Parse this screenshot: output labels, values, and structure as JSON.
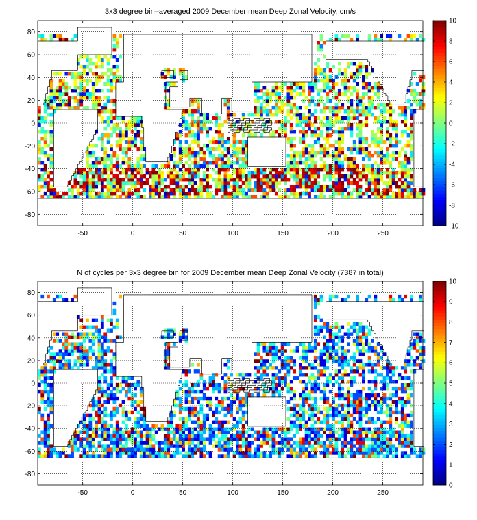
{
  "chart_data": [
    {
      "type": "heatmap",
      "title": "3x3 degree bin–averaged 2009 December mean Deep Zonal Velocity, cm/s",
      "xlabel": "",
      "ylabel": "",
      "xlim": [
        -95,
        290
      ],
      "ylim": [
        -90,
        90
      ],
      "xticks": [
        -50,
        0,
        50,
        100,
        150,
        200,
        250
      ],
      "yticks": [
        -80,
        -60,
        -40,
        -20,
        0,
        20,
        40,
        60,
        80
      ],
      "grid": true,
      "bin_size_deg": 3,
      "colormap": "jet",
      "colorbar": {
        "min": -10,
        "max": 10,
        "ticks": [
          -10,
          -8,
          -6,
          -4,
          -2,
          0,
          2,
          4,
          6,
          8,
          10
        ]
      },
      "dominant_values": "mostly between -3 and 3 cm/s (cyan-green-yellow); strong positive (red) bins concentrated in the Southern Ocean around -60 to -40 latitude",
      "value_distribution": [
        -1,
        -0.5,
        0,
        0.5,
        1,
        1.5,
        -1.5,
        2,
        -2,
        2.5,
        3,
        -3,
        4,
        5,
        6,
        8,
        10,
        -5,
        -7,
        -9
      ]
    },
    {
      "type": "heatmap",
      "title": "N of cycles per 3x3 degree bin for 2009 December mean Deep Zonal Velocity (7387 in total)",
      "xlabel": "",
      "ylabel": "",
      "xlim": [
        -95,
        290
      ],
      "ylim": [
        -90,
        90
      ],
      "xticks": [
        -50,
        0,
        50,
        100,
        150,
        200,
        250
      ],
      "yticks": [
        -80,
        -60,
        -40,
        -20,
        0,
        20,
        40,
        60,
        80
      ],
      "grid": true,
      "bin_size_deg": 3,
      "colormap": "jet",
      "total_cycles": 7387,
      "colorbar": {
        "min": 0,
        "max": 10,
        "ticks": [
          0,
          1,
          2,
          3,
          4,
          5,
          6,
          7,
          8,
          9,
          10
        ]
      },
      "dominant_values": "mostly 1 to 5 cycles per bin (blue-cyan), with scattered higher counts (red) in the NW Pacific and Indian Ocean",
      "value_distribution": [
        1,
        1,
        2,
        2,
        3,
        3,
        4,
        4,
        5,
        6,
        7,
        1,
        2,
        3,
        4,
        8,
        9,
        10,
        2,
        3
      ]
    }
  ]
}
